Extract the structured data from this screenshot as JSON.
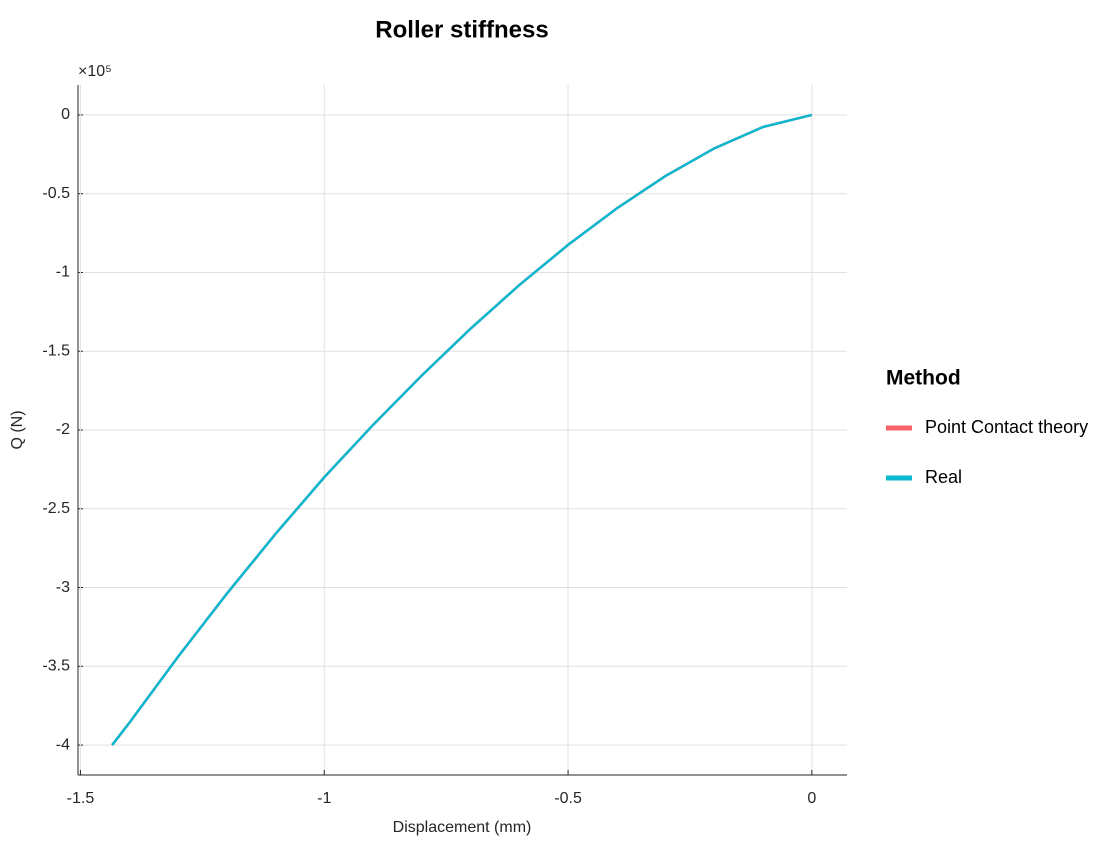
{
  "chart_data": {
    "type": "line",
    "title": "Roller stiffness",
    "x_label": "Displacement (mm)",
    "y_label": "Q (N)",
    "y_multiplier": "×10⁵",
    "legend_title": "Method",
    "legend": "right",
    "grid": true,
    "x": [
      0,
      -0.1,
      -0.2,
      -0.3,
      -0.4,
      -0.5,
      -0.6,
      -0.7,
      -0.8,
      -0.9,
      -1.0,
      -1.1,
      -1.2,
      -1.3,
      -1.4,
      -1.435
    ],
    "series": [
      {
        "name": "Point Contact theory",
        "color": "#f8636b",
        "values": [
          0,
          -0.076,
          -0.212,
          -0.387,
          -0.593,
          -0.825,
          -1.08,
          -1.357,
          -1.654,
          -1.968,
          -2.3,
          -2.66,
          -3.04,
          -3.44,
          -3.86,
          -4.0
        ]
      },
      {
        "name": "Real",
        "color": "#0ab8cf",
        "values": [
          0,
          -0.076,
          -0.212,
          -0.387,
          -0.593,
          -0.825,
          -1.08,
          -1.357,
          -1.654,
          -1.968,
          -2.3,
          -2.66,
          -3.04,
          -3.44,
          -3.86,
          -4.0
        ]
      }
    ],
    "xlim": [
      -1.505,
      0.072
    ],
    "xticks": [
      -1.5,
      -1,
      -0.5,
      0
    ],
    "ylim": [
      -4.19,
      0.19
    ],
    "yticks": [
      0,
      -0.5,
      -1,
      -1.5,
      -2,
      -2.5,
      -3,
      -3.5,
      -4
    ]
  }
}
